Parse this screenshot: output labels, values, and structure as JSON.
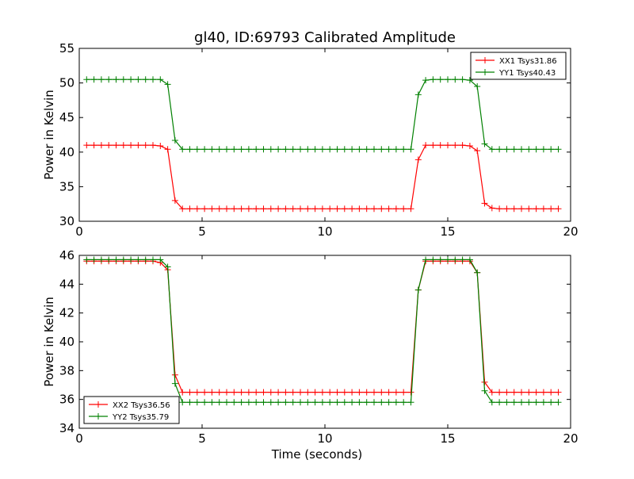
{
  "title": "gl40, ID:69793 Calibrated Amplitude",
  "chart_data": [
    {
      "type": "line",
      "ylabel": "Power in Kelvin",
      "xlabel": "",
      "xlim": [
        0,
        20
      ],
      "ylim": [
        30,
        55
      ],
      "xticks": [
        "0",
        "5",
        "10",
        "15",
        "20"
      ],
      "yticks": [
        "30",
        "35",
        "40",
        "45",
        "50",
        "55"
      ],
      "grid": false,
      "legend_position": "top-right",
      "series": [
        {
          "name": "XX1 Tsys31.86",
          "color": "#ff0000",
          "x": [
            0.3,
            0.6,
            0.9,
            1.2,
            1.5,
            1.8,
            2.1,
            2.4,
            2.7,
            3.0,
            3.3,
            3.6,
            3.9,
            4.2,
            4.5,
            4.8,
            5.1,
            5.4,
            5.7,
            6.0,
            6.3,
            6.6,
            6.9,
            7.2,
            7.5,
            7.8,
            8.1,
            8.4,
            8.7,
            9.0,
            9.3,
            9.6,
            9.9,
            10.2,
            10.5,
            10.8,
            11.1,
            11.4,
            11.7,
            12.0,
            12.3,
            12.6,
            12.9,
            13.2,
            13.5,
            13.8,
            14.1,
            14.4,
            14.7,
            15.0,
            15.3,
            15.6,
            15.9,
            16.2,
            16.5,
            16.8,
            17.1,
            17.4,
            17.7,
            18.0,
            18.3,
            18.6,
            18.9,
            19.2,
            19.5
          ],
          "y": [
            41.0,
            41.0,
            41.0,
            41.0,
            41.0,
            41.0,
            41.0,
            41.0,
            41.0,
            41.0,
            40.9,
            40.4,
            33.0,
            31.8,
            31.8,
            31.8,
            31.8,
            31.8,
            31.8,
            31.8,
            31.8,
            31.8,
            31.8,
            31.8,
            31.8,
            31.8,
            31.8,
            31.8,
            31.8,
            31.8,
            31.8,
            31.8,
            31.8,
            31.8,
            31.8,
            31.8,
            31.8,
            31.8,
            31.8,
            31.8,
            31.8,
            31.8,
            31.8,
            31.8,
            31.8,
            38.9,
            41.0,
            41.0,
            41.0,
            41.0,
            41.0,
            41.0,
            40.9,
            40.2,
            32.6,
            31.9,
            31.8,
            31.8,
            31.8,
            31.8,
            31.8,
            31.8,
            31.8,
            31.8,
            31.8
          ]
        },
        {
          "name": "YY1 Tsys40.43",
          "color": "#008000",
          "x": [
            0.3,
            0.6,
            0.9,
            1.2,
            1.5,
            1.8,
            2.1,
            2.4,
            2.7,
            3.0,
            3.3,
            3.6,
            3.9,
            4.2,
            4.5,
            4.8,
            5.1,
            5.4,
            5.7,
            6.0,
            6.3,
            6.6,
            6.9,
            7.2,
            7.5,
            7.8,
            8.1,
            8.4,
            8.7,
            9.0,
            9.3,
            9.6,
            9.9,
            10.2,
            10.5,
            10.8,
            11.1,
            11.4,
            11.7,
            12.0,
            12.3,
            12.6,
            12.9,
            13.2,
            13.5,
            13.8,
            14.1,
            14.4,
            14.7,
            15.0,
            15.3,
            15.6,
            15.9,
            16.2,
            16.5,
            16.8,
            17.1,
            17.4,
            17.7,
            18.0,
            18.3,
            18.6,
            18.9,
            19.2,
            19.5
          ],
          "y": [
            50.5,
            50.5,
            50.5,
            50.5,
            50.5,
            50.5,
            50.5,
            50.5,
            50.5,
            50.5,
            50.5,
            49.8,
            41.7,
            40.4,
            40.4,
            40.4,
            40.4,
            40.4,
            40.4,
            40.4,
            40.4,
            40.4,
            40.4,
            40.4,
            40.4,
            40.4,
            40.4,
            40.4,
            40.4,
            40.4,
            40.4,
            40.4,
            40.4,
            40.4,
            40.4,
            40.4,
            40.4,
            40.4,
            40.4,
            40.4,
            40.4,
            40.4,
            40.4,
            40.4,
            40.4,
            48.3,
            50.4,
            50.5,
            50.5,
            50.5,
            50.5,
            50.5,
            50.4,
            49.5,
            41.2,
            40.4,
            40.4,
            40.4,
            40.4,
            40.4,
            40.4,
            40.4,
            40.4,
            40.4,
            40.4
          ]
        }
      ]
    },
    {
      "type": "line",
      "ylabel": "Power in Kelvin",
      "xlabel": "Time (seconds)",
      "xlim": [
        0,
        20
      ],
      "ylim": [
        34,
        46
      ],
      "xticks": [
        "0",
        "5",
        "10",
        "15",
        "20"
      ],
      "yticks": [
        "34",
        "36",
        "38",
        "40",
        "42",
        "44",
        "46"
      ],
      "grid": false,
      "legend_position": "bottom-left",
      "series": [
        {
          "name": "XX2 Tsys36.56",
          "color": "#ff0000",
          "x": [
            0.3,
            0.6,
            0.9,
            1.2,
            1.5,
            1.8,
            2.1,
            2.4,
            2.7,
            3.0,
            3.3,
            3.6,
            3.9,
            4.2,
            4.5,
            4.8,
            5.1,
            5.4,
            5.7,
            6.0,
            6.3,
            6.6,
            6.9,
            7.2,
            7.5,
            7.8,
            8.1,
            8.4,
            8.7,
            9.0,
            9.3,
            9.6,
            9.9,
            10.2,
            10.5,
            10.8,
            11.1,
            11.4,
            11.7,
            12.0,
            12.3,
            12.6,
            12.9,
            13.2,
            13.5,
            13.8,
            14.1,
            14.4,
            14.7,
            15.0,
            15.3,
            15.6,
            15.9,
            16.2,
            16.5,
            16.8,
            17.1,
            17.4,
            17.7,
            18.0,
            18.3,
            18.6,
            18.9,
            19.2,
            19.5
          ],
          "y": [
            45.6,
            45.6,
            45.6,
            45.6,
            45.6,
            45.6,
            45.6,
            45.6,
            45.6,
            45.6,
            45.5,
            45.0,
            37.7,
            36.5,
            36.5,
            36.5,
            36.5,
            36.5,
            36.5,
            36.5,
            36.5,
            36.5,
            36.5,
            36.5,
            36.5,
            36.5,
            36.5,
            36.5,
            36.5,
            36.5,
            36.5,
            36.5,
            36.5,
            36.5,
            36.5,
            36.5,
            36.5,
            36.5,
            36.5,
            36.5,
            36.5,
            36.5,
            36.5,
            36.5,
            36.5,
            43.6,
            45.6,
            45.6,
            45.6,
            45.6,
            45.6,
            45.6,
            45.6,
            44.8,
            37.2,
            36.5,
            36.5,
            36.5,
            36.5,
            36.5,
            36.5,
            36.5,
            36.5,
            36.5,
            36.5
          ]
        },
        {
          "name": "YY2 Tsys35.79",
          "color": "#008000",
          "x": [
            0.3,
            0.6,
            0.9,
            1.2,
            1.5,
            1.8,
            2.1,
            2.4,
            2.7,
            3.0,
            3.3,
            3.6,
            3.9,
            4.2,
            4.5,
            4.8,
            5.1,
            5.4,
            5.7,
            6.0,
            6.3,
            6.6,
            6.9,
            7.2,
            7.5,
            7.8,
            8.1,
            8.4,
            8.7,
            9.0,
            9.3,
            9.6,
            9.9,
            10.2,
            10.5,
            10.8,
            11.1,
            11.4,
            11.7,
            12.0,
            12.3,
            12.6,
            12.9,
            13.2,
            13.5,
            13.8,
            14.1,
            14.4,
            14.7,
            15.0,
            15.3,
            15.6,
            15.9,
            16.2,
            16.5,
            16.8,
            17.1,
            17.4,
            17.7,
            18.0,
            18.3,
            18.6,
            18.9,
            19.2,
            19.5
          ],
          "y": [
            45.7,
            45.7,
            45.7,
            45.7,
            45.7,
            45.7,
            45.7,
            45.7,
            45.7,
            45.7,
            45.7,
            45.2,
            37.1,
            35.8,
            35.8,
            35.8,
            35.8,
            35.8,
            35.8,
            35.8,
            35.8,
            35.8,
            35.8,
            35.8,
            35.8,
            35.8,
            35.8,
            35.8,
            35.8,
            35.8,
            35.8,
            35.8,
            35.8,
            35.8,
            35.8,
            35.8,
            35.8,
            35.8,
            35.8,
            35.8,
            35.8,
            35.8,
            35.8,
            35.8,
            35.8,
            43.6,
            45.7,
            45.7,
            45.7,
            45.7,
            45.7,
            45.7,
            45.7,
            44.8,
            36.6,
            35.8,
            35.8,
            35.8,
            35.8,
            35.8,
            35.8,
            35.8,
            35.8,
            35.8,
            35.8
          ]
        }
      ]
    }
  ]
}
